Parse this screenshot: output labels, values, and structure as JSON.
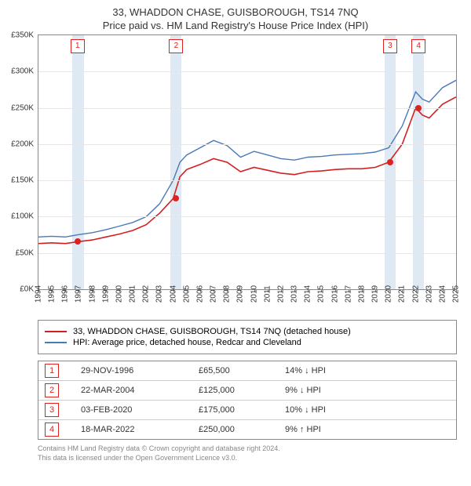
{
  "titles": {
    "line1": "33, WHADDON CHASE, GUISBOROUGH, TS14 7NQ",
    "line2": "Price paid vs. HM Land Registry's House Price Index (HPI)"
  },
  "chart": {
    "type": "line",
    "background_color": "#ffffff",
    "grid_color": "#e6e6e6",
    "axis_color": "#888888",
    "band_color": "#dbe7f3",
    "xlim": [
      1994,
      2025
    ],
    "ylim": [
      0,
      350000
    ],
    "ytick_step": 50000,
    "ytick_labels": [
      "£0K",
      "£50K",
      "£100K",
      "£150K",
      "£200K",
      "£250K",
      "£300K",
      "£350K"
    ],
    "xticks": [
      1994,
      1995,
      1996,
      1997,
      1998,
      1999,
      2000,
      2001,
      2002,
      2003,
      2004,
      2005,
      2006,
      2007,
      2008,
      2009,
      2010,
      2011,
      2012,
      2013,
      2014,
      2015,
      2016,
      2017,
      2018,
      2019,
      2020,
      2021,
      2022,
      2023,
      2024,
      2025
    ],
    "series": [
      {
        "name": "hpi",
        "color": "#4a79b7",
        "width": 1.4,
        "label": "HPI: Average price, detached house, Redcar and Cleveland",
        "points": [
          [
            1994,
            72000
          ],
          [
            1995,
            73000
          ],
          [
            1996,
            72000
          ],
          [
            1996.9,
            75000
          ],
          [
            1998,
            78000
          ],
          [
            1999,
            82000
          ],
          [
            2000,
            87000
          ],
          [
            2001,
            92000
          ],
          [
            2002,
            100000
          ],
          [
            2003,
            118000
          ],
          [
            2004,
            150000
          ],
          [
            2004.5,
            175000
          ],
          [
            2005,
            185000
          ],
          [
            2006,
            195000
          ],
          [
            2007,
            205000
          ],
          [
            2008,
            198000
          ],
          [
            2009,
            182000
          ],
          [
            2010,
            190000
          ],
          [
            2011,
            185000
          ],
          [
            2012,
            180000
          ],
          [
            2013,
            178000
          ],
          [
            2014,
            182000
          ],
          [
            2015,
            183000
          ],
          [
            2016,
            185000
          ],
          [
            2017,
            186000
          ],
          [
            2018,
            187000
          ],
          [
            2019,
            189000
          ],
          [
            2020,
            195000
          ],
          [
            2021,
            225000
          ],
          [
            2022,
            272000
          ],
          [
            2022.5,
            262000
          ],
          [
            2023,
            258000
          ],
          [
            2024,
            278000
          ],
          [
            2025,
            288000
          ]
        ]
      },
      {
        "name": "property",
        "color": "#d41f1f",
        "width": 1.6,
        "label": "33, WHADDON CHASE, GUISBOROUGH, TS14 7NQ (detached house)",
        "points": [
          [
            1994,
            63000
          ],
          [
            1995,
            64000
          ],
          [
            1996,
            63000
          ],
          [
            1996.9,
            65500
          ],
          [
            1998,
            68000
          ],
          [
            1999,
            72000
          ],
          [
            2000,
            76000
          ],
          [
            2001,
            81000
          ],
          [
            2002,
            89000
          ],
          [
            2003,
            105000
          ],
          [
            2004,
            125000
          ],
          [
            2004.5,
            155000
          ],
          [
            2005,
            165000
          ],
          [
            2006,
            172000
          ],
          [
            2007,
            180000
          ],
          [
            2008,
            175000
          ],
          [
            2009,
            162000
          ],
          [
            2010,
            168000
          ],
          [
            2011,
            164000
          ],
          [
            2012,
            160000
          ],
          [
            2013,
            158000
          ],
          [
            2014,
            162000
          ],
          [
            2015,
            163000
          ],
          [
            2016,
            165000
          ],
          [
            2017,
            166000
          ],
          [
            2018,
            166000
          ],
          [
            2019,
            168000
          ],
          [
            2020,
            175000
          ],
          [
            2021,
            200000
          ],
          [
            2022,
            250000
          ],
          [
            2022.5,
            240000
          ],
          [
            2023,
            236000
          ],
          [
            2024,
            255000
          ],
          [
            2025,
            265000
          ]
        ]
      }
    ],
    "sale_markers": [
      {
        "n": "1",
        "x": 1996.9,
        "y": 65500,
        "label_y": 335000
      },
      {
        "n": "2",
        "x": 2004.22,
        "y": 125000,
        "label_y": 335000
      },
      {
        "n": "3",
        "x": 2020.1,
        "y": 175000,
        "label_y": 335000
      },
      {
        "n": "4",
        "x": 2022.21,
        "y": 250000,
        "label_y": 335000
      }
    ],
    "bands": [
      [
        1996.5,
        1997.4
      ],
      [
        2003.8,
        2004.6
      ],
      [
        2019.7,
        2020.5
      ],
      [
        2021.8,
        2022.6
      ]
    ]
  },
  "legend": {
    "items": [
      {
        "color": "#d41f1f",
        "label": "33, WHADDON CHASE, GUISBOROUGH, TS14 7NQ (detached house)"
      },
      {
        "color": "#4a79b7",
        "label": "HPI: Average price, detached house, Redcar and Cleveland"
      }
    ]
  },
  "table": {
    "rows": [
      {
        "n": "1",
        "date": "29-NOV-1996",
        "price": "£65,500",
        "pct": "14% ↓ HPI"
      },
      {
        "n": "2",
        "date": "22-MAR-2004",
        "price": "£125,000",
        "pct": "9% ↓ HPI"
      },
      {
        "n": "3",
        "date": "03-FEB-2020",
        "price": "£175,000",
        "pct": "10% ↓ HPI"
      },
      {
        "n": "4",
        "date": "18-MAR-2022",
        "price": "£250,000",
        "pct": "9% ↑ HPI"
      }
    ]
  },
  "footer": {
    "line1": "Contains HM Land Registry data © Crown copyright and database right 2024.",
    "line2": "This data is licensed under the Open Government Licence v3.0."
  }
}
